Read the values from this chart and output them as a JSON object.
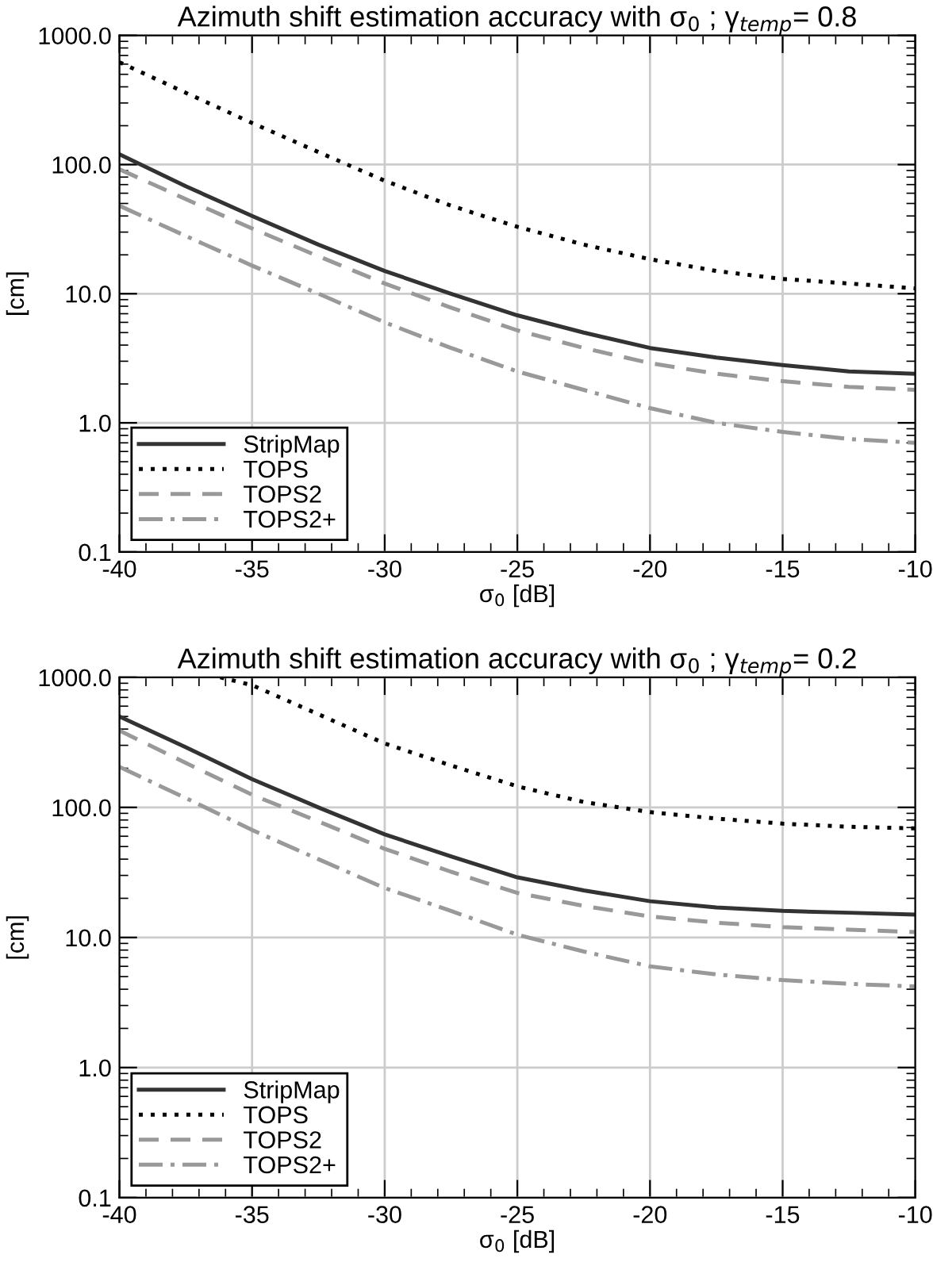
{
  "chart_data": [
    {
      "type": "line",
      "title": "Azimuth shift estimation accuracy with σ$_{0}$ ; γ$_{temp}$= 0.8",
      "xlabel": "σ$_{0}$ [dB]",
      "ylabel": "[cm]",
      "log": "y",
      "grid": true,
      "legend": "bottom left",
      "xlim": [
        -40,
        -10
      ],
      "xticks": [
        -40,
        -35,
        -30,
        -25,
        -20,
        -15,
        -10
      ],
      "ylim": [
        0.1,
        1000
      ],
      "yticks": [
        {
          "value": 0.1,
          "label": "0.1"
        },
        {
          "value": 1,
          "label": "1.0"
        },
        {
          "value": 10,
          "label": "10.0"
        },
        {
          "value": 100,
          "label": "100.0"
        },
        {
          "value": 1000,
          "label": "1000.0"
        }
      ],
      "x": [
        -40,
        -37.5,
        -35,
        -32.5,
        -30,
        -27.5,
        -25,
        -22.5,
        -20,
        -17.5,
        -15,
        -12.5,
        -10
      ],
      "series": [
        {
          "name": "StripMap",
          "color": "#333333",
          "line_style": "solid",
          "values": [
            120,
            68,
            40,
            24,
            15,
            10,
            6.8,
            5,
            3.8,
            3.2,
            2.8,
            2.5,
            2.4
          ]
        },
        {
          "name": "TOPS",
          "color": "#000000",
          "line_style": "dotted",
          "values": [
            620,
            360,
            210,
            125,
            75,
            48,
            33,
            24,
            18.5,
            15,
            13,
            12,
            11
          ]
        },
        {
          "name": "TOPS2",
          "color": "#999999",
          "line_style": "dashed",
          "values": [
            92,
            54,
            32,
            19.5,
            12,
            7.8,
            5.2,
            3.8,
            2.9,
            2.4,
            2.1,
            1.9,
            1.8
          ]
        },
        {
          "name": "TOPS2+",
          "color": "#999999",
          "line_style": "dashdot",
          "values": [
            48,
            28,
            16.5,
            10,
            6,
            3.8,
            2.5,
            1.8,
            1.3,
            1.0,
            0.85,
            0.75,
            0.7
          ]
        }
      ]
    },
    {
      "type": "line",
      "title": "Azimuth shift estimation accuracy with σ$_{0}$ ; γ$_{temp}$= 0.2",
      "xlabel": "σ$_{0}$ [dB]",
      "ylabel": "[cm]",
      "log": "y",
      "grid": true,
      "legend": "bottom left",
      "xlim": [
        -40,
        -10
      ],
      "xticks": [
        -40,
        -35,
        -30,
        -25,
        -20,
        -15,
        -10
      ],
      "ylim": [
        0.1,
        1000
      ],
      "yticks": [
        {
          "value": 0.1,
          "label": "0.1"
        },
        {
          "value": 1,
          "label": "1.0"
        },
        {
          "value": 10,
          "label": "10.0"
        },
        {
          "value": 100,
          "label": "100.0"
        },
        {
          "value": 1000,
          "label": "1000.0"
        }
      ],
      "x": [
        -40,
        -37.5,
        -35,
        -32.5,
        -30,
        -27.5,
        -25,
        -22.5,
        -20,
        -17.5,
        -15,
        -12.5,
        -10
      ],
      "series": [
        {
          "name": "StripMap",
          "color": "#333333",
          "line_style": "solid",
          "values": [
            500,
            290,
            165,
            100,
            62,
            42,
            29,
            23,
            19,
            17,
            16,
            15.5,
            15
          ]
        },
        {
          "name": "TOPS",
          "color": "#000000",
          "line_style": "dotted",
          "x": [
            -36.2,
            -35,
            -32.5,
            -30,
            -27.5,
            -25,
            -22.5,
            -20,
            -17.5,
            -15,
            -12.5,
            -10
          ],
          "values": [
            1000,
            870,
            520,
            310,
            210,
            145,
            110,
            92,
            82,
            75,
            71,
            69
          ]
        },
        {
          "name": "TOPS2",
          "color": "#999999",
          "line_style": "dashed",
          "values": [
            390,
            220,
            125,
            78,
            48,
            32,
            22,
            17.5,
            14.5,
            13,
            12,
            11.5,
            11
          ]
        },
        {
          "name": "TOPS2+",
          "color": "#999999",
          "line_style": "dashdot",
          "values": [
            205,
            118,
            67,
            40,
            24,
            16,
            10.5,
            7.8,
            6,
            5.2,
            4.7,
            4.4,
            4.2
          ]
        }
      ]
    }
  ]
}
